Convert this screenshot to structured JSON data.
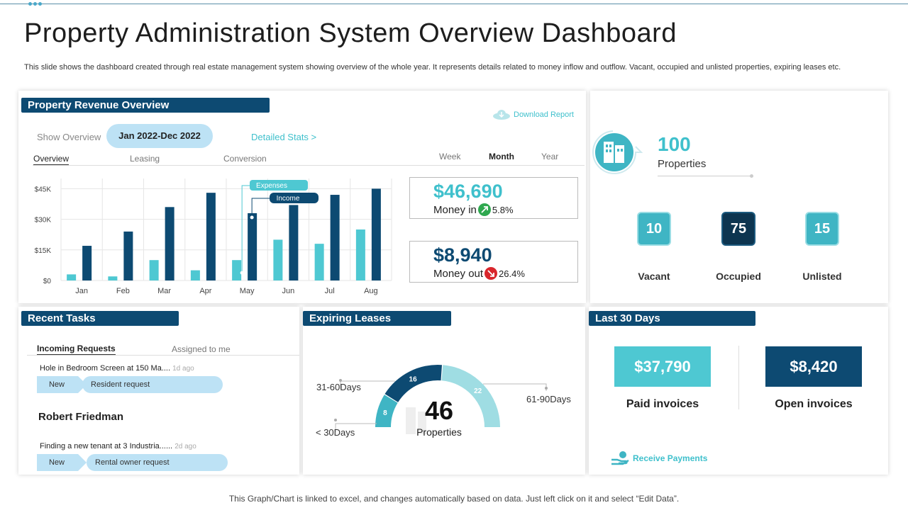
{
  "page": {
    "title": "Property Administration System Overview Dashboard",
    "description": "This slide shows the dashboard created through real estate management system showing overview of the whole year.  It represents details related to money inflow and outflow. Vacant,  occupied and unlisted properties, expiring leases etc.",
    "footer": "This Graph/Chart is linked to excel, and changes automatically based on data. Just left click on it and select “Edit Data”."
  },
  "revenue": {
    "title": "Property Revenue Overview",
    "download_label": "Download Report",
    "show_overview_label": "Show Overview",
    "date_range": "Jan 2022-Dec 2022",
    "detailed_stats": "Detailed Stats  >",
    "tabs": [
      "Overview",
      "Leasing",
      "Conversion"
    ],
    "periods": [
      "Week",
      "Month",
      "Year"
    ],
    "money_in": {
      "value": "$46,690",
      "label": "Money in",
      "pct": "5.8%"
    },
    "money_out": {
      "value": "$8,940",
      "label": "Money out",
      "pct": "26.4%"
    }
  },
  "chart_data": {
    "type": "bar",
    "categories": [
      "Jan",
      "Feb",
      "Mar",
      "Apr",
      "May",
      "Jun",
      "Jul",
      "Aug"
    ],
    "series": [
      {
        "name": "Expenses",
        "color": "#4ec8d2",
        "values": [
          3,
          2,
          10,
          5,
          10,
          20,
          18,
          25
        ]
      },
      {
        "name": "Income",
        "color": "#0d4a72",
        "values": [
          17,
          24,
          36,
          43,
          33,
          37,
          42,
          45
        ]
      }
    ],
    "y_ticks": [
      "$0",
      "$15K",
      "$30K",
      "$45K"
    ],
    "ylim": [
      0,
      50
    ],
    "units": "thousands USD"
  },
  "properties": {
    "total": "100",
    "total_label": "Properties",
    "stats": [
      {
        "value": "10",
        "label": "Vacant",
        "color": "#3fb5c4"
      },
      {
        "value": "75",
        "label": "Occupied",
        "color": "#0d3550"
      },
      {
        "value": "15",
        "label": "Unlisted",
        "color": "#3fb5c4"
      }
    ]
  },
  "tasks": {
    "title": "Recent Tasks",
    "tabs": [
      "Incoming Requests",
      "Assigned to me"
    ],
    "items": [
      {
        "text": "Hole in Bedroom Screen at 150 Ma....",
        "time": "1d ago",
        "status": "New",
        "type": "Resident request"
      },
      {
        "text": "Finding a new tenant at 3 Industria......",
        "time": "2d ago",
        "status": "New",
        "type": "Rental owner request"
      }
    ],
    "person": "Robert Friedman"
  },
  "leases": {
    "title": "Expiring Leases",
    "total": "46",
    "total_label": "Properties",
    "segments": [
      {
        "label": "< 30Days",
        "value": 8,
        "color": "#3fb5c4"
      },
      {
        "label": "31-60Days",
        "value": 16,
        "color": "#0d4a72"
      },
      {
        "label": "61-90Days",
        "value": 22,
        "color": "#9fdde3"
      }
    ]
  },
  "last30": {
    "title": "Last 30 Days",
    "paid": {
      "value": "$37,790",
      "label": "Paid invoices"
    },
    "open": {
      "value": "$8,420",
      "label": "Open invoices"
    },
    "receive": "Receive Payments"
  }
}
